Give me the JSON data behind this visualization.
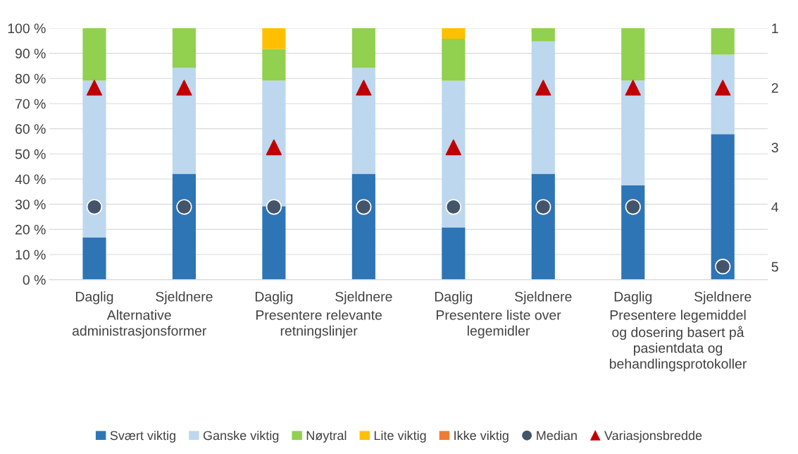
{
  "chart_data": {
    "type": "bar",
    "stacked": true,
    "categories": [
      "Daglig",
      "Sjeldnere",
      "Daglig",
      "Sjeldnere",
      "Daglig",
      "Sjeldnere",
      "Daglig",
      "Sjeldnere"
    ],
    "annotations": [
      "Alternative\nadministrasjonsformer",
      "Presentere relevante\nretningslinjer",
      "Presentere liste over\nlegemidler",
      "Presentere legemiddel\nog dosering basert på\npasientdata og\nbehandlingsprotokoller"
    ],
    "series": [
      {
        "name": "Svært viktig",
        "color": "#2e75b6",
        "values": [
          16.7,
          42.1,
          29.2,
          42.1,
          20.8,
          42.1,
          37.5,
          57.9
        ]
      },
      {
        "name": "Ganske viktig",
        "color": "#bdd7ee",
        "values": [
          62.5,
          42.1,
          50.0,
          42.1,
          58.3,
          52.6,
          41.7,
          31.6
        ]
      },
      {
        "name": "Nøytral",
        "color": "#92d050",
        "values": [
          20.8,
          15.8,
          12.5,
          15.8,
          16.7,
          5.3,
          20.8,
          10.5
        ]
      },
      {
        "name": "Lite viktig",
        "color": "#ffc000",
        "values": [
          0,
          0,
          8.3,
          0,
          4.2,
          0,
          0,
          0
        ]
      },
      {
        "name": "Ikke viktig",
        "color": "#ed7d31",
        "values": [
          0,
          0,
          0,
          0,
          0,
          0,
          0,
          0
        ]
      },
      {
        "name": "Median",
        "type": "scatter",
        "axis": "y2",
        "marker": "circle",
        "color": "#44546a",
        "values": [
          4,
          4,
          4,
          4,
          4,
          4,
          4,
          5
        ]
      },
      {
        "name": "Variasjonsbredde",
        "type": "scatter",
        "axis": "y2",
        "marker": "triangle",
        "color": "#c00000",
        "values": [
          2,
          2,
          3,
          2,
          3,
          2,
          2,
          2
        ]
      }
    ],
    "ylim": [
      0,
      100
    ],
    "yticks": [
      {
        "value": 0,
        "label": "0 %"
      },
      {
        "value": 10,
        "label": "10 %"
      },
      {
        "value": 20,
        "label": "20 %"
      },
      {
        "value": 30,
        "label": "30 %"
      },
      {
        "value": 40,
        "label": "40 %"
      },
      {
        "value": 50,
        "label": "50 %"
      },
      {
        "value": 60,
        "label": "60 %"
      },
      {
        "value": 70,
        "label": "70 %"
      },
      {
        "value": 80,
        "label": "80 %"
      },
      {
        "value": 90,
        "label": "90 %"
      },
      {
        "value": 100,
        "label": "100 %"
      }
    ],
    "y2lim": [
      5.22,
      1
    ],
    "y2ticks": [
      1,
      2,
      3,
      4,
      5
    ],
    "grid": "y",
    "legend": "bottom"
  }
}
